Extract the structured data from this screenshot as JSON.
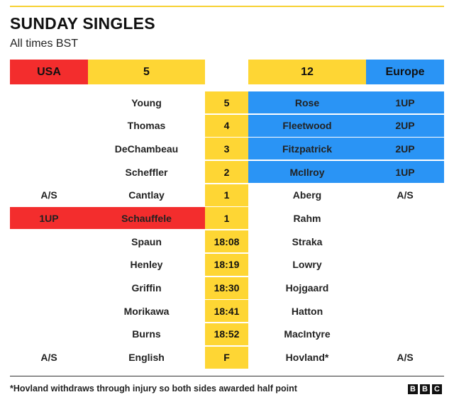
{
  "title": "SUNDAY SINGLES",
  "subtitle": "All times BST",
  "header": {
    "usa_label": "USA",
    "usa_score": "5",
    "europe_score": "12",
    "europe_label": "Europe"
  },
  "colors": {
    "usa": "#f32d2d",
    "europe": "#2a94f5",
    "score": "#fed634"
  },
  "rows": [
    {
      "usa_status": "",
      "usa_player": "Young",
      "middle": "5",
      "europe_player": "Rose",
      "europe_status": "1UP",
      "leader": "europe"
    },
    {
      "usa_status": "",
      "usa_player": "Thomas",
      "middle": "4",
      "europe_player": "Fleetwood",
      "europe_status": "2UP",
      "leader": "europe"
    },
    {
      "usa_status": "",
      "usa_player": "DeChambeau",
      "middle": "3",
      "europe_player": "Fitzpatrick",
      "europe_status": "2UP",
      "leader": "europe"
    },
    {
      "usa_status": "",
      "usa_player": "Scheffler",
      "middle": "2",
      "europe_player": "McIlroy",
      "europe_status": "1UP",
      "leader": "europe"
    },
    {
      "usa_status": "A/S",
      "usa_player": "Cantlay",
      "middle": "1",
      "europe_player": "Aberg",
      "europe_status": "A/S",
      "leader": ""
    },
    {
      "usa_status": "1UP",
      "usa_player": "Schauffele",
      "middle": "1",
      "europe_player": "Rahm",
      "europe_status": "",
      "leader": "usa"
    },
    {
      "usa_status": "",
      "usa_player": "Spaun",
      "middle": "18:08",
      "europe_player": "Straka",
      "europe_status": "",
      "leader": ""
    },
    {
      "usa_status": "",
      "usa_player": "Henley",
      "middle": "18:19",
      "europe_player": "Lowry",
      "europe_status": "",
      "leader": ""
    },
    {
      "usa_status": "",
      "usa_player": "Griffin",
      "middle": "18:30",
      "europe_player": "Hojgaard",
      "europe_status": "",
      "leader": ""
    },
    {
      "usa_status": "",
      "usa_player": "Morikawa",
      "middle": "18:41",
      "europe_player": "Hatton",
      "europe_status": "",
      "leader": ""
    },
    {
      "usa_status": "",
      "usa_player": "Burns",
      "middle": "18:52",
      "europe_player": "MacIntyre",
      "europe_status": "",
      "leader": ""
    },
    {
      "usa_status": "A/S",
      "usa_player": "English",
      "middle": "F",
      "europe_player": "Hovland*",
      "europe_status": "A/S",
      "leader": ""
    }
  ],
  "footnote": "*Hovland withdraws through injury so both sides awarded half point",
  "logo": [
    "B",
    "B",
    "C"
  ]
}
